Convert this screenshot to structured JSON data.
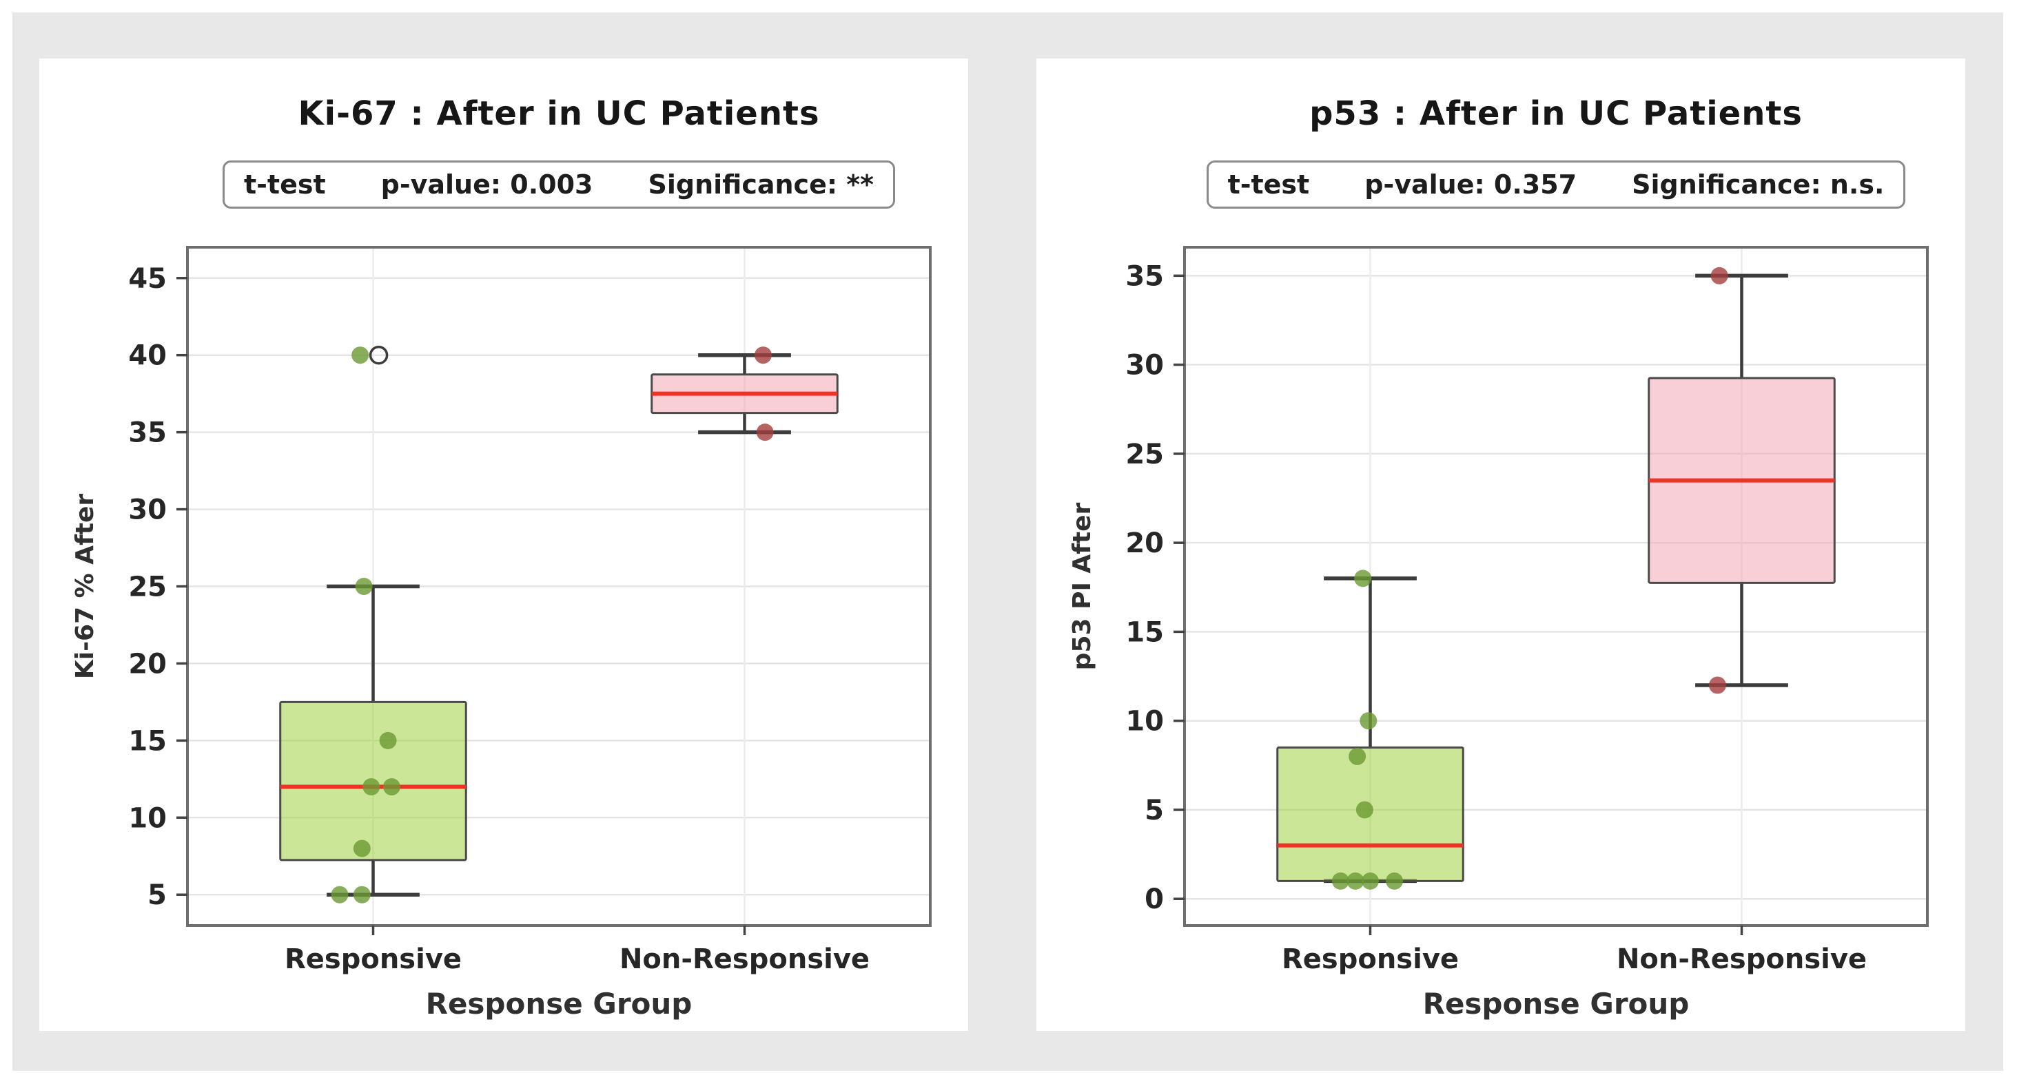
{
  "style": {
    "frame_color": "#e8e8e8",
    "panel_color": "#ffffff",
    "spine_color": "#6e6e6e",
    "grid_color": "#e4e4e4",
    "vgrid_color": "#ececec",
    "tick_color": "#444444",
    "tick_label_color": "#262626",
    "axis_label_color": "#303030",
    "median_color": "#ee3326",
    "whisker_color": "#3c3c3c",
    "box_edge_color": "#4a4a4a",
    "outlier_edge_color": "#3c3c3c",
    "stats_border_color": "#8a8a8a"
  },
  "chart_data": [
    {
      "type": "boxplot",
      "title": "Ki-67 : After in UC Patients",
      "stats": {
        "test": "t-test",
        "p_value": "p-value: 0.003",
        "significance": "Significance: **"
      },
      "xlabel": "Response Group",
      "ylabel": "Ki-67 % After",
      "categories": [
        "Responsive",
        "Non-Responsive"
      ],
      "ylim": [
        3,
        47
      ],
      "yticks": [
        5,
        10,
        15,
        20,
        25,
        30,
        35,
        40,
        45
      ],
      "grid": true,
      "groups": [
        {
          "name": "Responsive",
          "box_color": "#9acd32",
          "point_color": "#6b9a32",
          "values": [
            5,
            5,
            8,
            12,
            12,
            15,
            25,
            40
          ],
          "box": {
            "q1": 7.25,
            "median": 12,
            "q3": 17.5,
            "whisker_low": 5,
            "whisker_high": 25
          },
          "outliers": [
            {
              "v": 40,
              "dx": 0.015
            }
          ],
          "points": [
            {
              "v": 40,
              "dx": -0.035
            },
            {
              "v": 25,
              "dx": -0.025
            },
            {
              "v": 15,
              "dx": 0.04
            },
            {
              "v": 12,
              "dx": -0.005
            },
            {
              "v": 12,
              "dx": 0.05
            },
            {
              "v": 8,
              "dx": -0.03
            },
            {
              "v": 5,
              "dx": -0.09
            },
            {
              "v": 5,
              "dx": -0.03
            }
          ]
        },
        {
          "name": "Non-Responsive",
          "box_color": "#f4a0b0",
          "point_color": "#a23c3c",
          "values": [
            35,
            40
          ],
          "box": {
            "q1": 36.25,
            "median": 37.5,
            "q3": 38.75,
            "whisker_low": 35,
            "whisker_high": 40
          },
          "outliers": [],
          "points": [
            {
              "v": 40,
              "dx": 0.05
            },
            {
              "v": 35,
              "dx": 0.055
            }
          ]
        }
      ]
    },
    {
      "type": "boxplot",
      "title": "p53 : After in UC Patients",
      "stats": {
        "test": "t-test",
        "p_value": "p-value: 0.357",
        "significance": "Significance: n.s."
      },
      "xlabel": "Response Group",
      "ylabel": "p53 PI After",
      "categories": [
        "Responsive",
        "Non-Responsive"
      ],
      "ylim": [
        -1.5,
        36.6
      ],
      "yticks": [
        0,
        5,
        10,
        15,
        20,
        25,
        30,
        35
      ],
      "grid": true,
      "groups": [
        {
          "name": "Responsive",
          "box_color": "#9acd32",
          "point_color": "#6b9a32",
          "values": [
            1,
            1,
            1,
            1,
            5,
            8,
            10,
            18
          ],
          "box": {
            "q1": 1,
            "median": 3,
            "q3": 8.5,
            "whisker_low": 1,
            "whisker_high": 18
          },
          "outliers": [],
          "points": [
            {
              "v": 18,
              "dx": -0.02
            },
            {
              "v": 10,
              "dx": -0.005
            },
            {
              "v": 8,
              "dx": -0.035
            },
            {
              "v": 5,
              "dx": -0.015
            },
            {
              "v": 1,
              "dx": -0.08
            },
            {
              "v": 1,
              "dx": -0.04
            },
            {
              "v": 1,
              "dx": 0.0
            },
            {
              "v": 1,
              "dx": 0.065
            }
          ]
        },
        {
          "name": "Non-Responsive",
          "box_color": "#f4a0b0",
          "point_color": "#a23c3c",
          "values": [
            12,
            35
          ],
          "box": {
            "q1": 17.75,
            "median": 23.5,
            "q3": 29.25,
            "whisker_low": 12,
            "whisker_high": 35
          },
          "outliers": [],
          "points": [
            {
              "v": 35,
              "dx": -0.06
            },
            {
              "v": 12,
              "dx": -0.065
            }
          ]
        }
      ]
    }
  ]
}
